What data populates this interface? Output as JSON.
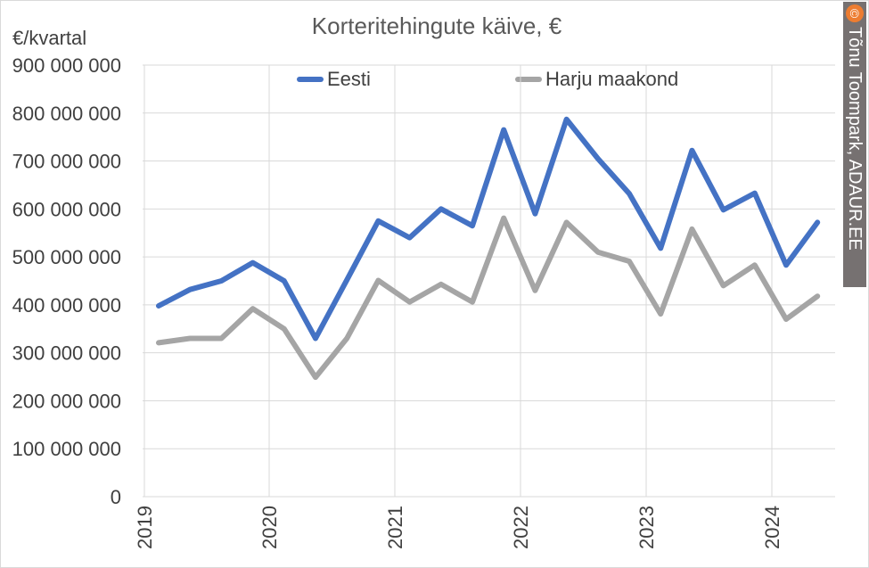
{
  "chart_data": {
    "type": "line",
    "title": "Korteritehingute käive, €",
    "ylabel": "€/kvartal",
    "ylim": [
      0,
      900000000
    ],
    "yticks": [
      0,
      100000000,
      200000000,
      300000000,
      400000000,
      500000000,
      600000000,
      700000000,
      800000000,
      900000000
    ],
    "ytick_labels": [
      "0",
      "100 000 000",
      "200 000 000",
      "300 000 000",
      "400 000 000",
      "500 000 000",
      "600 000 000",
      "700 000 000",
      "800 000 000",
      "900 000 000"
    ],
    "xtick_labels": [
      "2019",
      "2020",
      "2021",
      "2022",
      "2023",
      "2024"
    ],
    "grid": true,
    "legend_position": "top",
    "series": [
      {
        "name": "Eesti",
        "color": "#4472c4",
        "values": [
          398000000,
          432000000,
          450000000,
          488000000,
          450000000,
          330000000,
          452000000,
          575000000,
          540000000,
          600000000,
          565000000,
          765000000,
          590000000,
          787000000,
          705000000,
          632000000,
          518000000,
          722000000,
          598000000,
          633000000,
          483000000,
          572000000
        ]
      },
      {
        "name": "Harju maakond",
        "color": "#a5a5a5",
        "values": [
          321000000,
          330000000,
          330000000,
          392000000,
          350000000,
          249000000,
          330000000,
          451000000,
          406000000,
          443000000,
          406000000,
          581000000,
          430000000,
          572000000,
          510000000,
          491000000,
          381000000,
          558000000,
          440000000,
          483000000,
          370000000,
          418000000
        ]
      }
    ]
  },
  "watermark": {
    "icon": "copyright-icon",
    "symbol": "©",
    "text": "Tõnu Toompark, ADAUR.EE"
  }
}
